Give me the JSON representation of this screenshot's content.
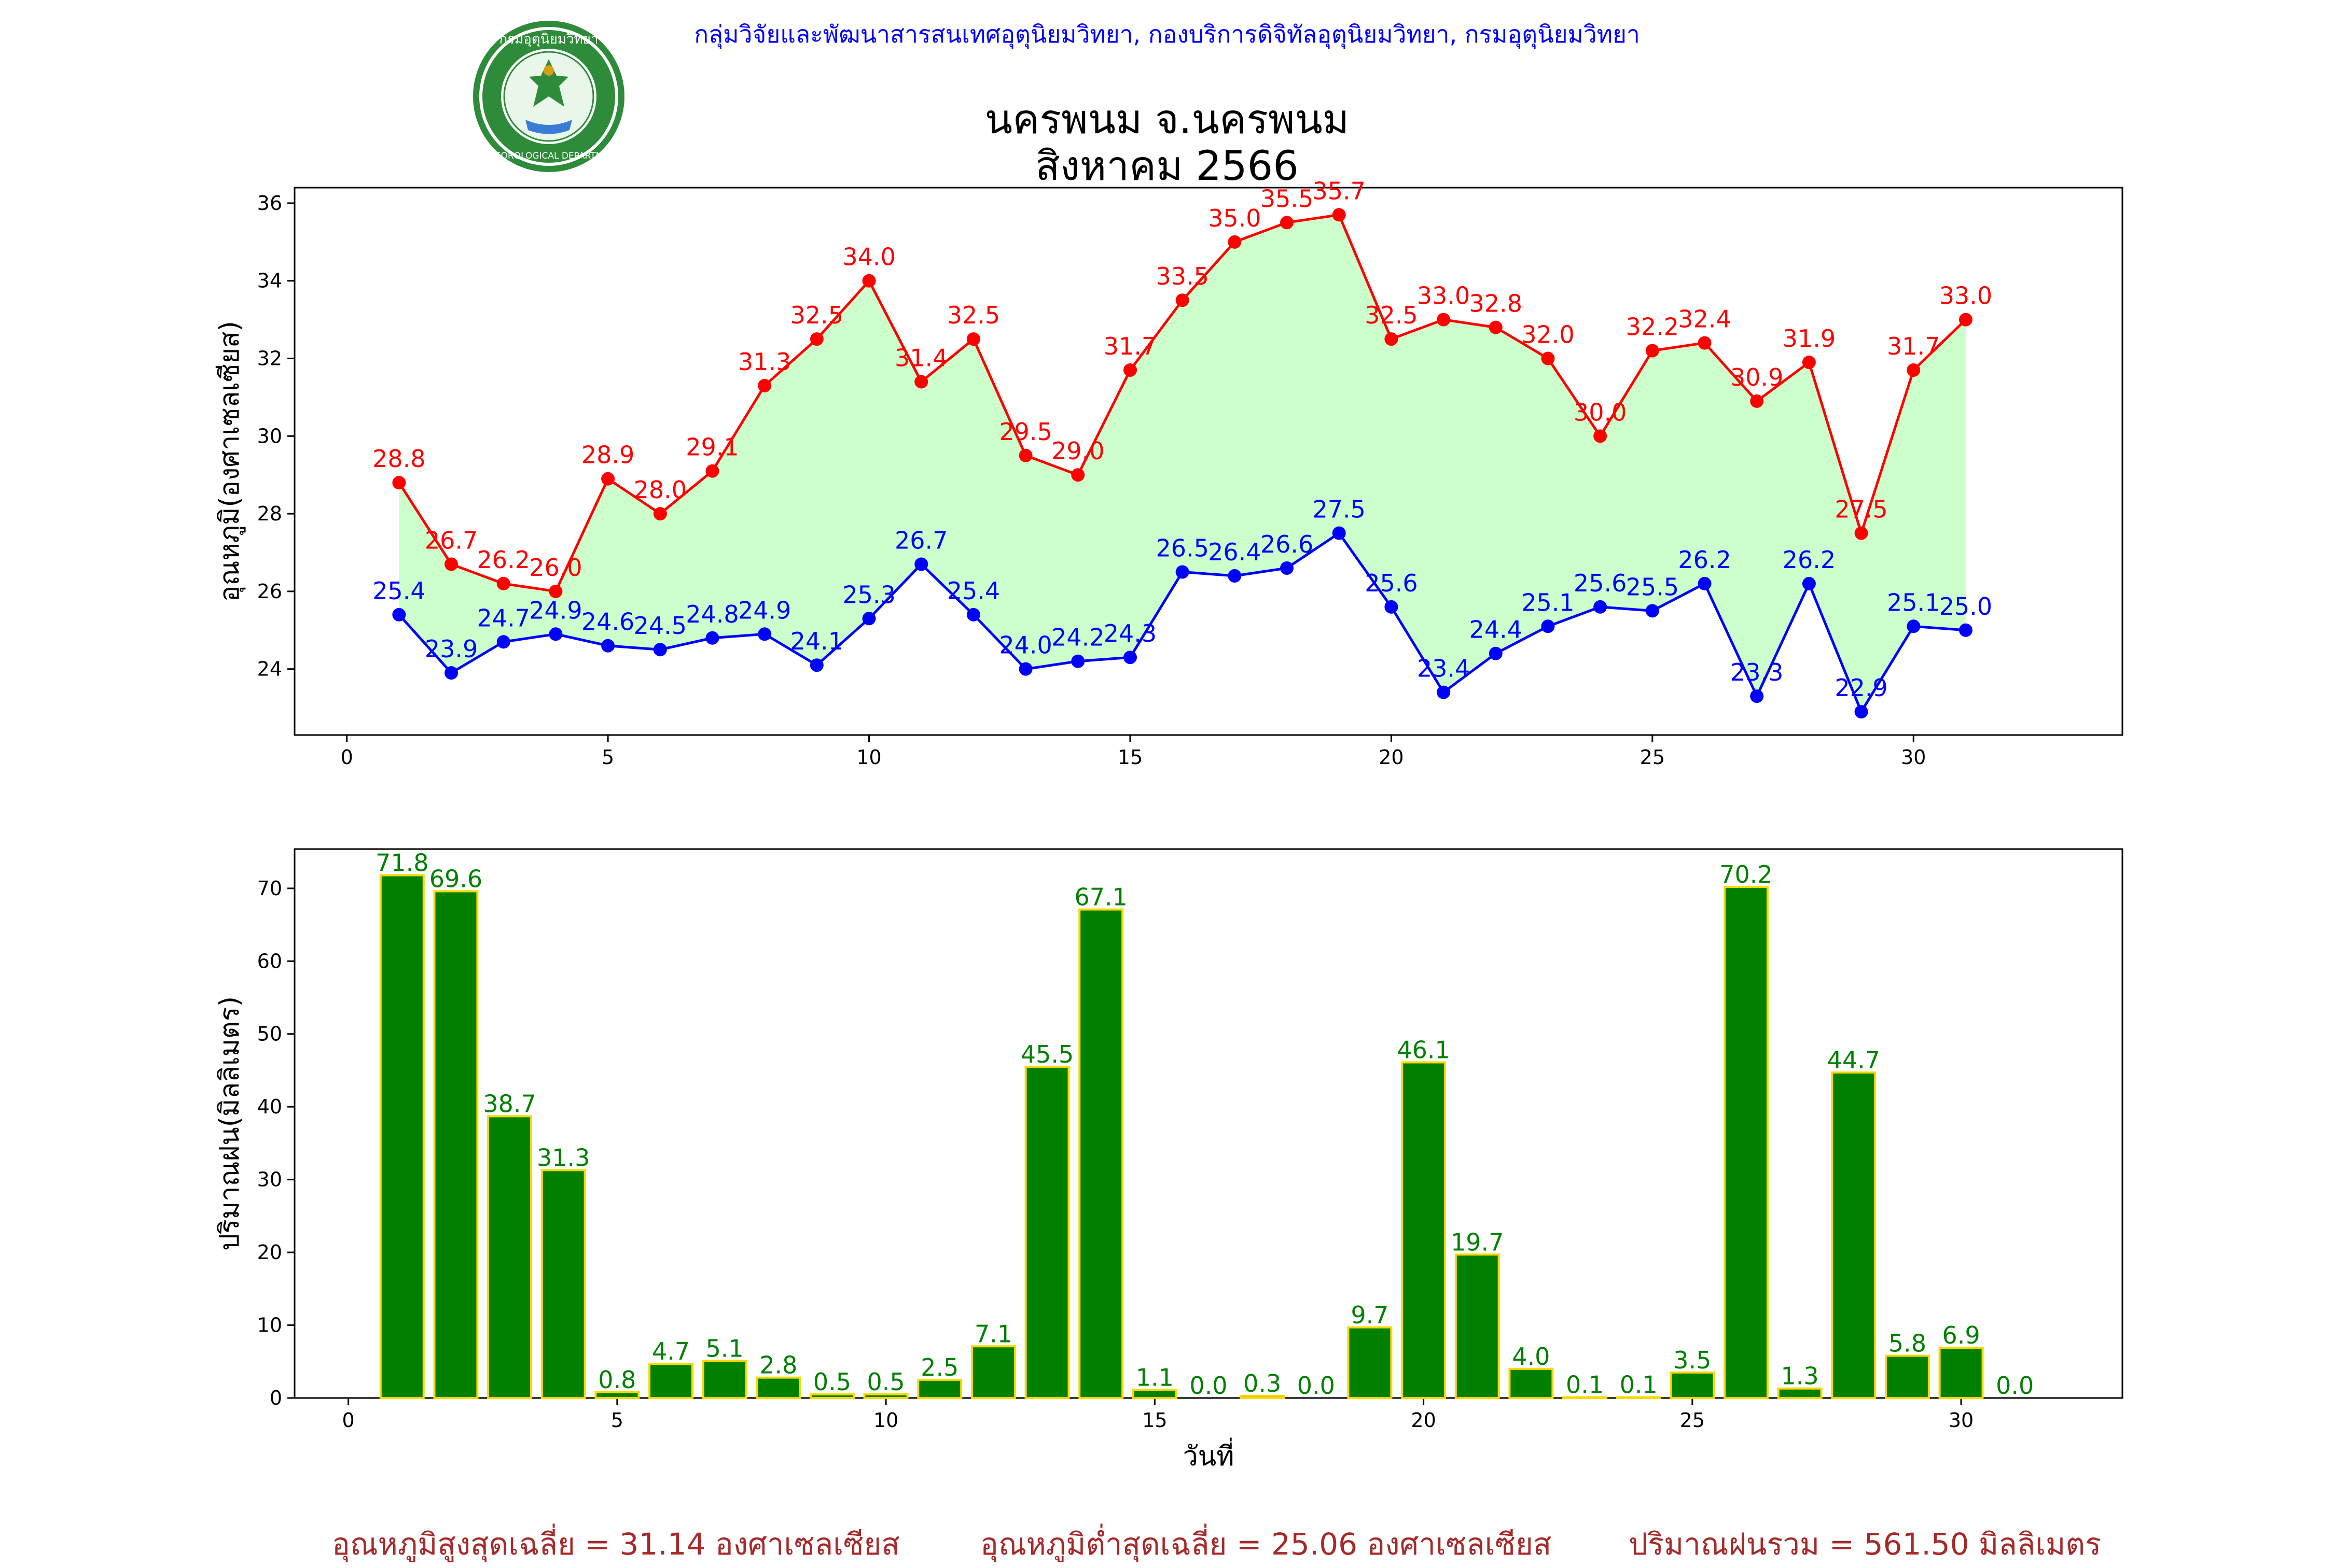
{
  "header": {
    "agency_line": "กลุ่มวิจัยและพัฒนาสารสนเทศอุตุนิยมวิทยา, กองบริการดิจิทัลอุตุนิยมวิทยา, กรมอุตุนิยมวิทยา",
    "title_line1": "นครพนม จ.นครพนม",
    "title_line2": "สิงหาคม 2566",
    "logo_text_top": "กรมอุตุนิยมวิทยา",
    "logo_text_bottom": "METEOROLOGICAL DEPARTMENT"
  },
  "chart_data": [
    {
      "type": "line",
      "ylabel": "อุณหภูมิ(องศาเซลเซียส)",
      "xlim": [
        -1,
        34
      ],
      "ylim": [
        22.3,
        36.4
      ],
      "xticks": [
        0,
        5,
        10,
        15,
        20,
        25,
        30
      ],
      "yticks": [
        24,
        26,
        28,
        30,
        32,
        34,
        36
      ],
      "x": [
        1,
        2,
        3,
        4,
        5,
        6,
        7,
        8,
        9,
        10,
        11,
        12,
        13,
        14,
        15,
        16,
        17,
        18,
        19,
        20,
        21,
        22,
        23,
        24,
        25,
        26,
        27,
        28,
        29,
        30,
        31
      ],
      "series": [
        {
          "key": "max",
          "color": "#ff0000",
          "values": [
            28.8,
            26.7,
            26.2,
            26.0,
            28.9,
            28.0,
            29.1,
            31.3,
            32.5,
            34.0,
            31.4,
            32.5,
            29.5,
            29.0,
            31.7,
            33.5,
            35.0,
            35.5,
            35.7,
            32.5,
            33.0,
            32.8,
            32.0,
            30.0,
            32.2,
            32.4,
            30.9,
            31.9,
            27.5,
            31.7,
            33.0
          ]
        },
        {
          "key": "min",
          "color": "#0000ff",
          "values": [
            25.4,
            23.9,
            24.7,
            24.9,
            24.6,
            24.5,
            24.8,
            24.9,
            24.1,
            25.3,
            26.7,
            25.4,
            24.0,
            24.2,
            24.3,
            26.5,
            26.4,
            26.6,
            27.5,
            25.6,
            23.4,
            24.4,
            25.1,
            25.6,
            25.5,
            26.2,
            23.3,
            26.2,
            22.9,
            25.1,
            25.0
          ]
        }
      ],
      "fill_between": {
        "color": "#ccffcc"
      },
      "grid": false
    },
    {
      "type": "bar",
      "ylabel": "ปริมาณฝน(มิลลิเมตร)",
      "xlabel": "วันที่",
      "xlim": [
        -1,
        33
      ],
      "ylim": [
        0,
        75.4
      ],
      "xticks": [
        0,
        5,
        10,
        15,
        20,
        25,
        30
      ],
      "yticks": [
        0,
        10,
        20,
        30,
        40,
        50,
        60,
        70
      ],
      "x": [
        1,
        2,
        3,
        4,
        5,
        6,
        7,
        8,
        9,
        10,
        11,
        12,
        13,
        14,
        15,
        16,
        17,
        18,
        19,
        20,
        21,
        22,
        23,
        24,
        25,
        26,
        27,
        28,
        29,
        30,
        31
      ],
      "values": [
        71.8,
        69.6,
        38.7,
        31.3,
        0.8,
        4.7,
        5.1,
        2.8,
        0.5,
        0.5,
        2.5,
        7.1,
        45.5,
        67.1,
        1.1,
        0.0,
        0.3,
        0.0,
        9.7,
        46.1,
        19.7,
        4.0,
        0.1,
        0.1,
        3.5,
        70.2,
        1.3,
        44.7,
        5.8,
        6.9,
        0.0
      ],
      "bar_color": "#008000",
      "edge_color": "#ffd700",
      "label_color": "#008000",
      "grid": false
    }
  ],
  "summary": {
    "avg_max": "อุณหภูมิสูงสุดเฉลี่ย = 31.14 องศาเซลเซียส",
    "avg_min": "อุณหภูมิต่ำสุดเฉลี่ย = 25.06 องศาเซลเซียส",
    "total_rain": "ปริมาณฝนรวม = 561.50 มิลลิเมตร"
  }
}
